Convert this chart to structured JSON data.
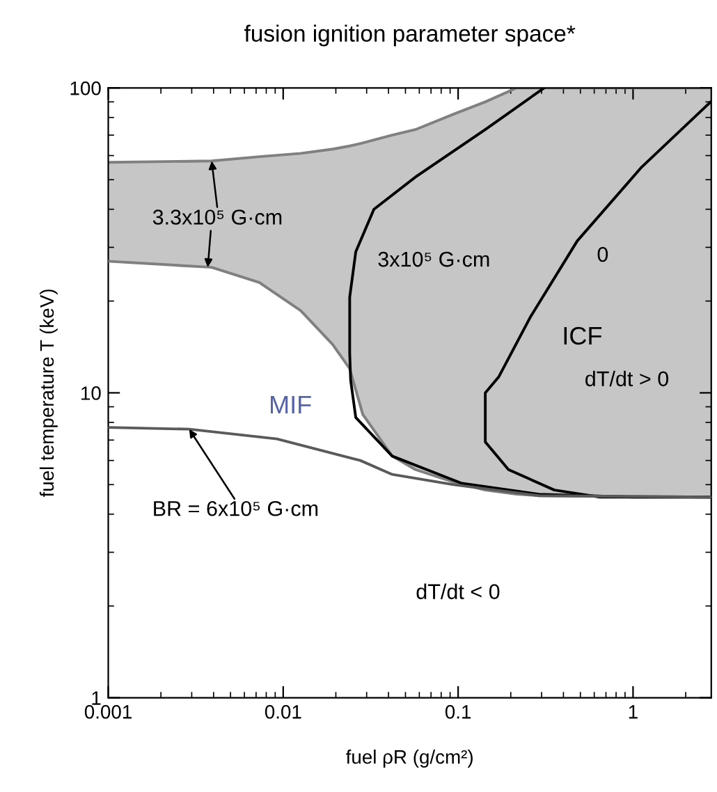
{
  "chart_data": {
    "type": "line",
    "title": "fusion ignition parameter space*",
    "xlabel": "fuel ρR (g/cm²)",
    "ylabel": "fuel temperature T (keV)",
    "log": "xy",
    "xlim": [
      0.001,
      2.8
    ],
    "ylim": [
      1,
      100
    ],
    "xticks": [
      0.001,
      0.01,
      0.1,
      1
    ],
    "yticks": [
      1,
      10,
      100
    ],
    "series": [
      {
        "color": "#808080",
        "x": [
          0.001,
          0.0039,
          0.0073,
          0.0126,
          0.0192,
          0.024,
          0.0285,
          0.042,
          0.057,
          0.094,
          0.143,
          0.216,
          0.29,
          2.8
        ],
        "values": [
          57,
          57.6,
          59.5,
          61,
          63,
          64.5,
          66,
          70,
          73,
          82,
          90,
          100,
          100,
          100
        ],
        "lower": [
          27,
          25.8,
          23,
          18.6,
          14.4,
          12,
          8.5,
          6.2,
          5.6,
          5.1,
          4.8,
          4.65,
          4.6,
          4.55
        ],
        "upper": [
          57,
          57.6,
          59.5,
          61,
          63,
          64.5,
          66,
          70,
          73,
          82,
          90,
          100,
          100,
          100
        ]
      },
      {
        "color": "#808080",
        "x": [
          0.001,
          0.0039,
          0.0073,
          0.0126,
          0.0192,
          0.024,
          0.0285,
          0.042,
          0.057,
          0.094,
          0.143,
          0.216,
          0.29,
          2.8
        ],
        "values": [
          27,
          25.8,
          23,
          18.6,
          14.4,
          12,
          8.5,
          6.2,
          5.6,
          5.1,
          4.8,
          4.65,
          4.6,
          4.55
        ]
      },
      {
        "color": "#000000",
        "x": [
          0.31,
          0.143,
          0.057,
          0.033,
          0.026,
          0.024,
          0.024,
          0.0243,
          0.026,
          0.042,
          0.105,
          0.29,
          1,
          2.8
        ],
        "values": [
          100,
          73,
          51,
          40,
          29,
          20.6,
          13.5,
          11,
          8.3,
          6.2,
          5.05,
          4.65,
          4.55,
          4.55
        ]
      },
      {
        "color": "#000000",
        "x": [
          2.78,
          1.12,
          0.48,
          0.26,
          0.171,
          0.143,
          0.143,
          0.194,
          0.355,
          0.645,
          2.8
        ],
        "values": [
          90,
          55,
          31.5,
          17.8,
          11.3,
          10,
          6.9,
          5.6,
          4.8,
          4.55,
          4.55
        ]
      },
      {
        "color": "#5a5a5a",
        "x": [
          0.001,
          0.0029,
          0.0092,
          0.0276,
          0.042,
          0.094,
          0.29,
          2.8
        ],
        "values": [
          7.7,
          7.6,
          7.06,
          6.0,
          5.4,
          5.0,
          4.6,
          4.55
        ]
      }
    ],
    "annotations": [
      {
        "text": "3.3x10⁵ G·cm",
        "x": 0.0039,
        "y": 57.6
      },
      "3x10⁵ G·cm",
      "0",
      "ICF",
      "dT/dt > 0",
      "MIF",
      {
        "text": "BR = 6x10⁵ G·cm",
        "x": 0.0029,
        "y": 7.6
      },
      "dT/dt < 0"
    ]
  }
}
